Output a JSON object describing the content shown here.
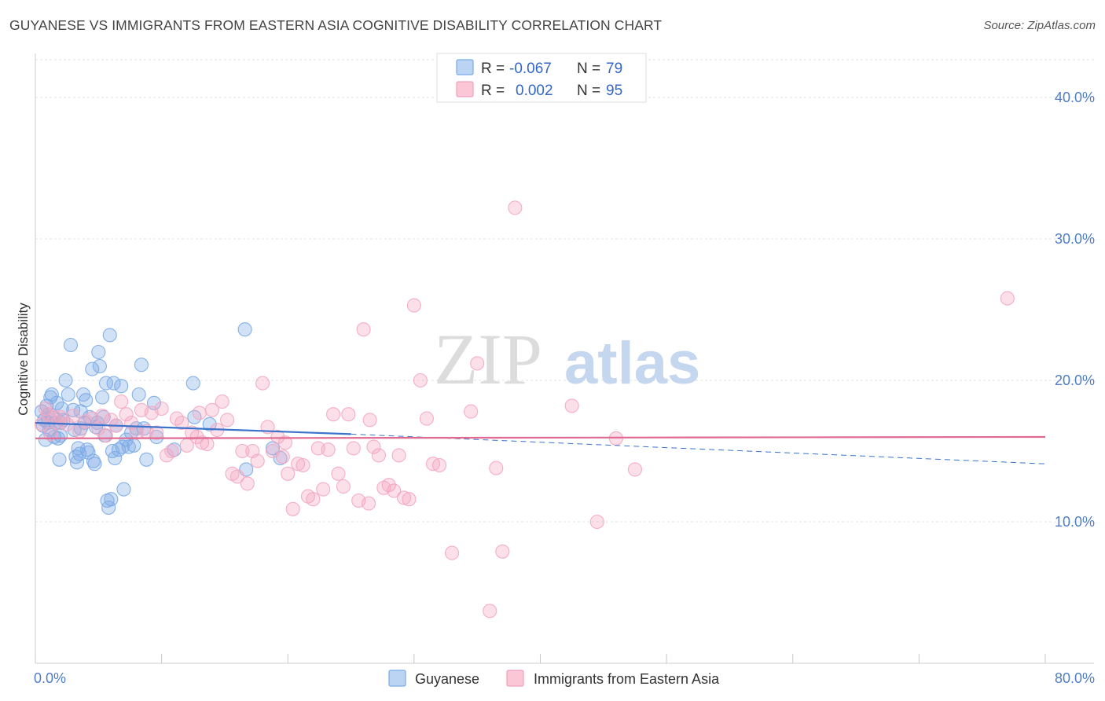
{
  "title": "GUYANESE VS IMMIGRANTS FROM EASTERN ASIA COGNITIVE DISABILITY CORRELATION CHART",
  "source": "Source: ZipAtlas.com",
  "watermark": {
    "left": "ZIP",
    "right": "atlas"
  },
  "chart_data": {
    "type": "scatter",
    "title": "GUYANESE VS IMMIGRANTS FROM EASTERN ASIA COGNITIVE DISABILITY CORRELATION CHART",
    "ylabel": "Cognitive Disability",
    "xlim": [
      0,
      80
    ],
    "ylim": [
      0,
      43
    ],
    "x_tick_labels": [
      "0.0%",
      "80.0%"
    ],
    "y_ticks": [
      10,
      20,
      30,
      40
    ],
    "y_tick_labels": [
      "10.0%",
      "20.0%",
      "30.0%",
      "40.0%"
    ],
    "grid": true,
    "legend_placement": "top-center",
    "legend": [
      {
        "r_label": "R =",
        "r_value": "-0.067",
        "n_label": "N =",
        "n_value": "79"
      },
      {
        "r_label": "R =",
        "r_value": "0.002",
        "n_label": "N =",
        "n_value": "95"
      }
    ],
    "bottom_legend": [
      "Guyanese",
      "Immigrants from Eastern Asia"
    ],
    "series": [
      {
        "name": "Guyanese",
        "color": "#7aaae6",
        "line_color": "#3a72cc",
        "trend": {
          "x0": 0,
          "y0": 17.0,
          "x1": 25,
          "y1": 16.2,
          "x_dash_end": 80,
          "y_dash_end": 14.1
        },
        "points": [
          [
            0.5,
            17.8
          ],
          [
            0.6,
            16.8
          ],
          [
            0.7,
            17.2
          ],
          [
            0.8,
            15.8
          ],
          [
            0.9,
            18.2
          ],
          [
            1.0,
            17.6
          ],
          [
            1.1,
            16.5
          ],
          [
            1.2,
            18.8
          ],
          [
            1.3,
            19.0
          ],
          [
            1.4,
            17.4
          ],
          [
            1.5,
            16.0
          ],
          [
            1.6,
            17.0
          ],
          [
            1.7,
            18.4
          ],
          [
            1.8,
            15.9
          ],
          [
            1.9,
            14.4
          ],
          [
            2.0,
            16.1
          ],
          [
            2.1,
            18.0
          ],
          [
            2.2,
            17.2
          ],
          [
            2.4,
            20.0
          ],
          [
            2.6,
            19.0
          ],
          [
            2.8,
            22.5
          ],
          [
            3.0,
            17.9
          ],
          [
            3.1,
            16.5
          ],
          [
            3.2,
            14.6
          ],
          [
            3.3,
            14.2
          ],
          [
            3.4,
            15.2
          ],
          [
            3.5,
            14.8
          ],
          [
            3.6,
            16.6
          ],
          [
            3.8,
            19.0
          ],
          [
            3.9,
            17.0
          ],
          [
            4.0,
            18.6
          ],
          [
            4.1,
            15.1
          ],
          [
            4.2,
            14.9
          ],
          [
            4.3,
            17.4
          ],
          [
            4.5,
            20.8
          ],
          [
            4.6,
            14.3
          ],
          [
            4.7,
            14.1
          ],
          [
            4.8,
            16.7
          ],
          [
            4.9,
            17.0
          ],
          [
            5.0,
            22.0
          ],
          [
            5.1,
            21.0
          ],
          [
            5.3,
            18.8
          ],
          [
            5.4,
            17.4
          ],
          [
            5.5,
            16.1
          ],
          [
            5.6,
            19.8
          ],
          [
            5.7,
            11.5
          ],
          [
            5.8,
            11.0
          ],
          [
            5.9,
            23.2
          ],
          [
            6.0,
            11.6
          ],
          [
            6.1,
            15.0
          ],
          [
            6.2,
            19.8
          ],
          [
            6.3,
            14.5
          ],
          [
            6.4,
            16.8
          ],
          [
            6.6,
            15.1
          ],
          [
            6.8,
            19.6
          ],
          [
            6.9,
            15.3
          ],
          [
            7.0,
            12.3
          ],
          [
            7.2,
            15.8
          ],
          [
            7.4,
            15.3
          ],
          [
            7.6,
            16.3
          ],
          [
            7.8,
            15.4
          ],
          [
            8.0,
            16.6
          ],
          [
            8.2,
            19.0
          ],
          [
            8.4,
            21.1
          ],
          [
            8.6,
            16.6
          ],
          [
            8.8,
            14.4
          ],
          [
            9.4,
            18.4
          ],
          [
            9.6,
            16.0
          ],
          [
            11.0,
            15.1
          ],
          [
            12.5,
            19.8
          ],
          [
            12.6,
            17.4
          ],
          [
            13.8,
            16.9
          ],
          [
            16.6,
            23.6
          ],
          [
            16.7,
            13.7
          ],
          [
            18.8,
            15.2
          ],
          [
            19.4,
            14.5
          ],
          [
            2.0,
            17.0
          ],
          [
            3.6,
            17.8
          ],
          [
            1.0,
            17.0
          ]
        ]
      },
      {
        "name": "Immigrants from Eastern Asia",
        "color": "#f4a6bf",
        "line_color": "#e06a92",
        "trend": {
          "x0": 0,
          "y0": 15.9,
          "x1": 80,
          "y1": 16.0
        },
        "points": [
          [
            0.5,
            16.9
          ],
          [
            0.8,
            18.0
          ],
          [
            1.0,
            17.6
          ],
          [
            1.2,
            16.2
          ],
          [
            1.5,
            17.4
          ],
          [
            1.8,
            17.0
          ],
          [
            2.0,
            17.4
          ],
          [
            2.5,
            16.9
          ],
          [
            3.0,
            17.5
          ],
          [
            3.5,
            16.4
          ],
          [
            4.0,
            17.1
          ],
          [
            4.5,
            17.3
          ],
          [
            5.0,
            16.6
          ],
          [
            5.3,
            17.5
          ],
          [
            5.6,
            16.1
          ],
          [
            6.0,
            17.2
          ],
          [
            6.4,
            16.8
          ],
          [
            6.8,
            18.5
          ],
          [
            7.2,
            17.6
          ],
          [
            7.6,
            17.0
          ],
          [
            8.0,
            16.3
          ],
          [
            8.4,
            17.9
          ],
          [
            8.8,
            16.4
          ],
          [
            9.2,
            17.7
          ],
          [
            9.6,
            16.3
          ],
          [
            10.0,
            18.0
          ],
          [
            10.4,
            14.7
          ],
          [
            10.8,
            15.0
          ],
          [
            11.2,
            17.3
          ],
          [
            11.6,
            17.0
          ],
          [
            12.0,
            15.4
          ],
          [
            12.4,
            16.3
          ],
          [
            12.8,
            16.0
          ],
          [
            13.2,
            15.6
          ],
          [
            13.6,
            15.5
          ],
          [
            14.0,
            17.9
          ],
          [
            14.4,
            16.5
          ],
          [
            14.8,
            18.5
          ],
          [
            15.2,
            17.2
          ],
          [
            15.6,
            13.4
          ],
          [
            16.0,
            13.2
          ],
          [
            16.4,
            15.0
          ],
          [
            16.8,
            12.7
          ],
          [
            17.2,
            15.0
          ],
          [
            17.6,
            14.3
          ],
          [
            18.0,
            19.8
          ],
          [
            18.4,
            16.7
          ],
          [
            18.8,
            15.0
          ],
          [
            19.2,
            16.0
          ],
          [
            19.6,
            14.6
          ],
          [
            20.0,
            13.4
          ],
          [
            20.4,
            10.9
          ],
          [
            20.8,
            14.1
          ],
          [
            21.2,
            14.0
          ],
          [
            21.6,
            11.8
          ],
          [
            22.0,
            11.6
          ],
          [
            22.4,
            15.2
          ],
          [
            22.8,
            12.3
          ],
          [
            23.2,
            15.1
          ],
          [
            23.6,
            17.6
          ],
          [
            24.0,
            13.4
          ],
          [
            24.4,
            12.5
          ],
          [
            24.8,
            17.6
          ],
          [
            25.2,
            15.2
          ],
          [
            25.6,
            11.5
          ],
          [
            26.0,
            23.6
          ],
          [
            26.4,
            11.3
          ],
          [
            26.8,
            15.3
          ],
          [
            27.2,
            14.7
          ],
          [
            27.6,
            12.4
          ],
          [
            28.0,
            12.6
          ],
          [
            28.4,
            12.2
          ],
          [
            28.8,
            14.7
          ],
          [
            29.2,
            11.7
          ],
          [
            29.6,
            11.6
          ],
          [
            30.0,
            25.3
          ],
          [
            30.5,
            20.0
          ],
          [
            31.0,
            17.3
          ],
          [
            31.5,
            14.1
          ],
          [
            32.0,
            14.0
          ],
          [
            33.0,
            7.8
          ],
          [
            34.5,
            17.8
          ],
          [
            35.0,
            21.2
          ],
          [
            36.5,
            13.8
          ],
          [
            37.0,
            7.9
          ],
          [
            36.0,
            3.7
          ],
          [
            38.0,
            32.2
          ],
          [
            42.5,
            18.2
          ],
          [
            44.5,
            10.0
          ],
          [
            46.0,
            15.9
          ],
          [
            47.5,
            13.7
          ],
          [
            77.0,
            25.8
          ],
          [
            26.5,
            17.2
          ],
          [
            13.0,
            17.7
          ],
          [
            19.8,
            15.6
          ]
        ]
      }
    ]
  }
}
